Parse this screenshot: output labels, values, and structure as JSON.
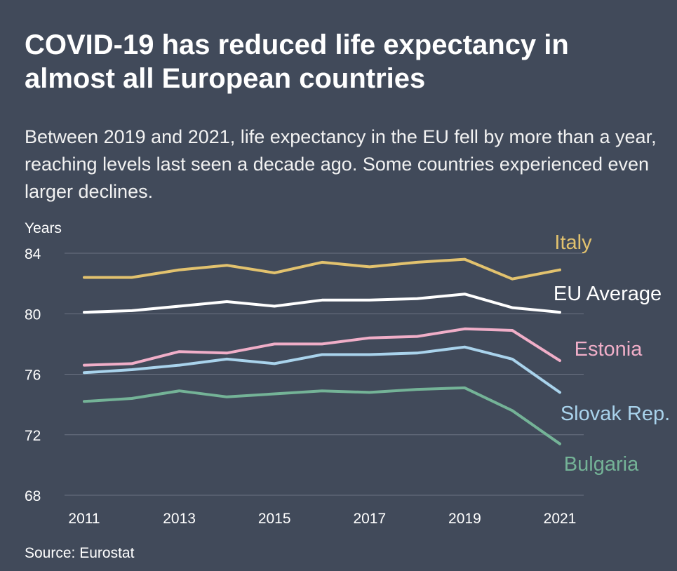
{
  "title": "COVID-19 has reduced life expectancy in almost all European countries",
  "subtitle": "Between 2019 and 2021, life expectancy in the EU fell by more than a year, reaching levels last seen a decade ago. Some countries experienced even larger declines.",
  "source": "Source: Eurostat",
  "colors": {
    "background": "#414a5a",
    "grid": "#6a7282"
  },
  "chart_data": {
    "type": "line",
    "title": "COVID-19 has reduced life expectancy in almost all European countries",
    "ylabel": "Years",
    "xlabel": "",
    "grid": true,
    "ylim": [
      68,
      84
    ],
    "yticks": [
      84,
      80,
      76,
      72,
      68
    ],
    "xlim": [
      2011,
      2021
    ],
    "xticks": [
      2011,
      2013,
      2015,
      2017,
      2019,
      2021
    ],
    "x": [
      2011,
      2012,
      2013,
      2014,
      2015,
      2016,
      2017,
      2018,
      2019,
      2020,
      2021
    ],
    "series": [
      {
        "name": "Italy",
        "color": "#e2c26e",
        "values": [
          82.4,
          82.4,
          82.9,
          83.2,
          82.7,
          83.4,
          83.1,
          83.4,
          83.6,
          82.3,
          82.9
        ]
      },
      {
        "name": "EU Average",
        "color": "#ffffff",
        "values": [
          80.1,
          80.2,
          80.5,
          80.8,
          80.5,
          80.9,
          80.9,
          81.0,
          81.3,
          80.4,
          80.1
        ]
      },
      {
        "name": "Estonia",
        "color": "#f0aec8",
        "values": [
          76.6,
          76.7,
          77.5,
          77.4,
          78.0,
          78.0,
          78.4,
          78.5,
          79.0,
          78.9,
          76.9
        ]
      },
      {
        "name": "Slovak Rep.",
        "color": "#a9d3ec",
        "values": [
          76.1,
          76.3,
          76.6,
          77.0,
          76.7,
          77.3,
          77.3,
          77.4,
          77.8,
          77.0,
          74.8
        ]
      },
      {
        "name": "Bulgaria",
        "color": "#74b397",
        "values": [
          74.2,
          74.4,
          74.9,
          74.5,
          74.7,
          74.9,
          74.8,
          75.0,
          75.1,
          73.6,
          71.4
        ]
      }
    ]
  }
}
